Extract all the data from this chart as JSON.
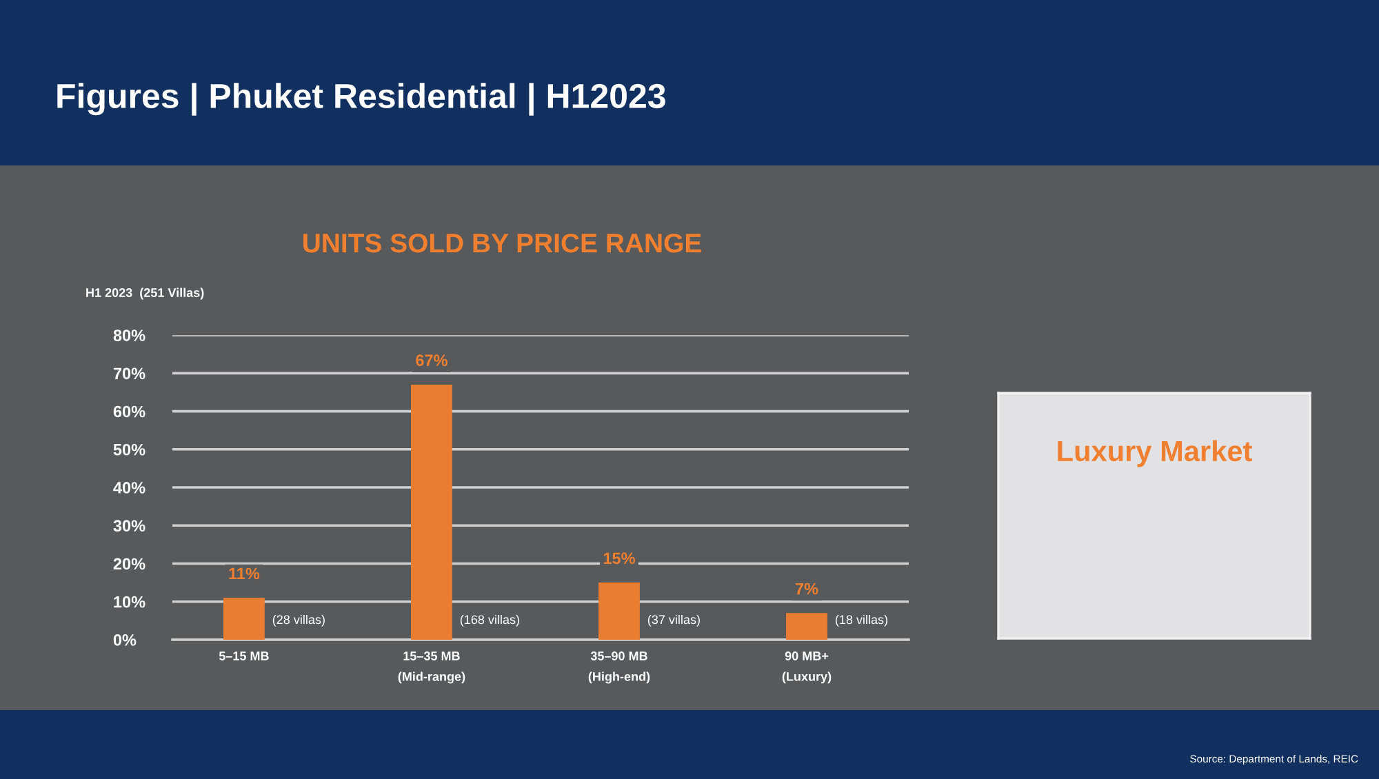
{
  "chart_data": [
    {
      "type": "bar",
      "title": "Figures | Phuket Residential | H12023",
      "subtitle": "UNITS SOLD BY PRICE RANGE",
      "ylabel": "H1 2023  (251 Villas)",
      "categories": [
        "5–15 MB",
        "15–35 MB\n(Mid-range)",
        "35–90 MB\n(High-end)",
        "90 MB+\n(Luxury)"
      ],
      "values": [
        11,
        67,
        15,
        7
      ],
      "color": "#e97d32",
      "value_labels": [
        "11%",
        "67%",
        "15%",
        "7%"
      ],
      "ylim": [
        0,
        80
      ],
      "yticks": [
        {
          "value": 0,
          "label": "0%"
        },
        {
          "value": 10,
          "label": "10%"
        },
        {
          "value": 20,
          "label": "20%"
        },
        {
          "value": 30,
          "label": "30%"
        },
        {
          "value": 40,
          "label": "40%"
        },
        {
          "value": 50,
          "label": "50%"
        },
        {
          "value": 60,
          "label": "60%"
        },
        {
          "value": 70,
          "label": "70%"
        },
        {
          "value": 80,
          "label": "80%"
        }
      ],
      "grid": "y",
      "annotations": [
        "(28 villas)",
        "(168 villas)",
        "(37 villas)",
        "(18 villas)",
        "Source: Department of Lands, REIC"
      ]
    },
    {
      "type": "other",
      "title": "Luxury Market"
    }
  ]
}
